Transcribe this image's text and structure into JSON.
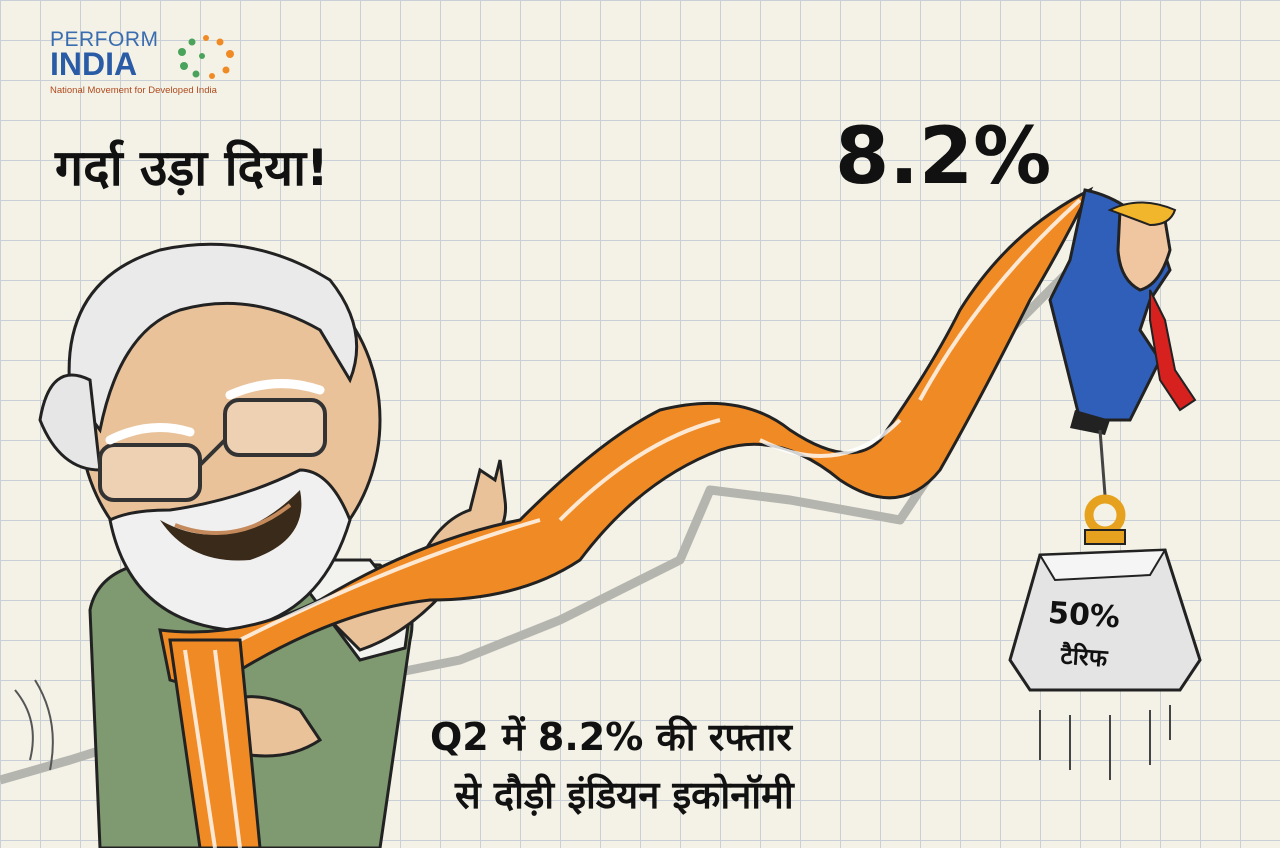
{
  "logo": {
    "line1": "PERFORM",
    "line2": "INDIA",
    "tagline": "National Movement for Developed India"
  },
  "headline": "गर्दा उड़ा दिया!",
  "growth_figure": "8.2%",
  "weight": {
    "percent": "50%",
    "label": "टैरिफ"
  },
  "caption": {
    "line1": "Q2 में 8.2% की रफ्तार",
    "line2": "से दौड़ी इंडियन इकोनॉमी"
  },
  "colors": {
    "background": "#f4f2e6",
    "grid": "#c9cfd6",
    "saffron": "#f08a24",
    "suit_blue": "#2f5fb8",
    "tie_red": "#d6211f",
    "vest_green": "#7f9a70"
  }
}
